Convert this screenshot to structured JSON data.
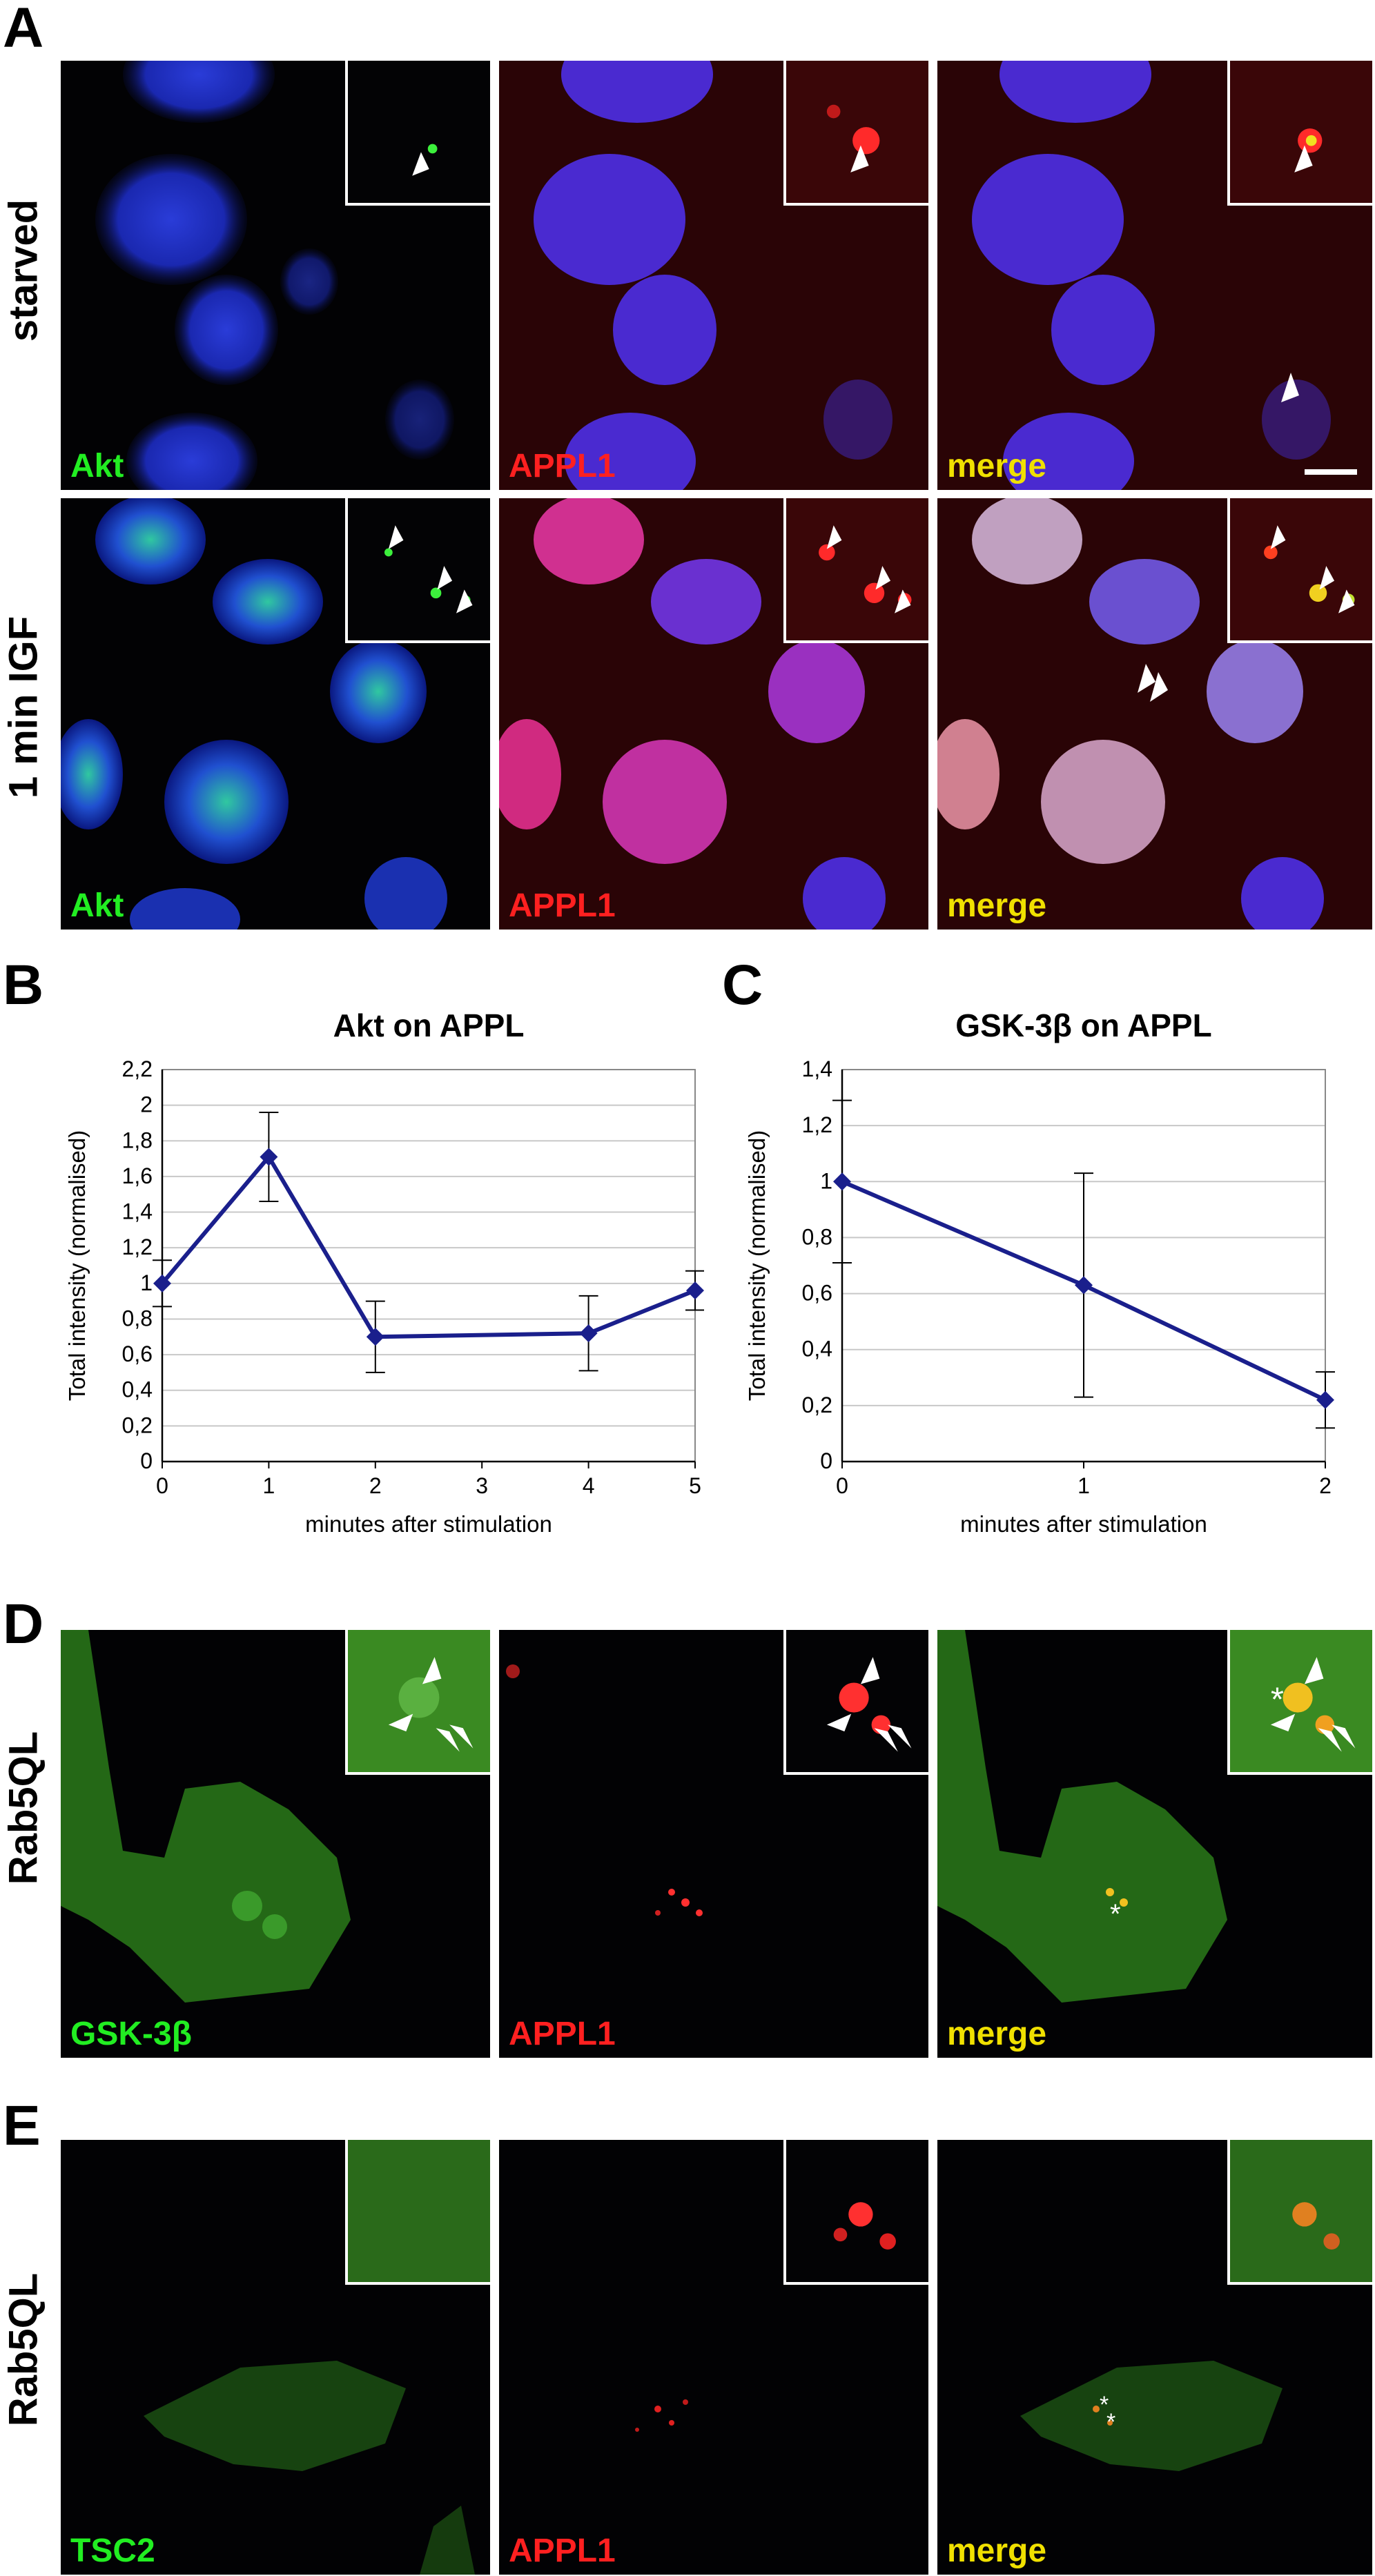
{
  "panel_labels": {
    "A": "A",
    "B": "B",
    "C": "C",
    "D": "D",
    "E": "E"
  },
  "row_labels": {
    "starved": "starved",
    "igf": "1 min IGF",
    "rab5ql_d": "Rab5QL",
    "rab5ql_e": "Rab5QL"
  },
  "stain_labels": {
    "akt": "Akt",
    "appl1": "APPL1",
    "merge": "merge",
    "gsk": "GSK-3β",
    "tsc2": "TSC2"
  },
  "colors": {
    "green_label": "#22ee22",
    "red_label": "#ff2020",
    "merge_label": "#f0e000",
    "series_line": "#1a1f8c",
    "grid": "#c8c8c8"
  },
  "icons": [
    "arrowhead-icon",
    "asterisk-icon",
    "scale-bar"
  ],
  "chart_data": [
    {
      "type": "line",
      "title": "Akt on APPL",
      "xlabel": "minutes after stimulation",
      "ylabel": "Total intensity (normalised)",
      "x": [
        0,
        1,
        2,
        4,
        5
      ],
      "xticks": [
        0,
        1,
        2,
        3,
        4,
        5
      ],
      "xtick_labels": [
        "0",
        "1",
        "2",
        "3",
        "4",
        "5"
      ],
      "yticks": [
        0,
        0.2,
        0.4,
        0.6,
        0.8,
        1,
        1.2,
        1.4,
        1.6,
        1.8,
        2,
        2.2
      ],
      "ytick_labels": [
        "0",
        "0,2",
        "0,4",
        "0,6",
        "0,8",
        "1",
        "1,2",
        "1,4",
        "1,6",
        "1,8",
        "2",
        "2,2"
      ],
      "ylim": [
        0,
        2.2
      ],
      "xlim": [
        0,
        5
      ],
      "grid": true,
      "series": [
        {
          "values": [
            1.0,
            1.71,
            0.7,
            0.72,
            0.96
          ],
          "errors": [
            0.13,
            0.25,
            0.2,
            0.21,
            0.11
          ]
        }
      ]
    },
    {
      "type": "line",
      "title": "GSK-3β on APPL",
      "xlabel": "minutes after stimulation",
      "ylabel": "Total intensity (normalised)",
      "x": [
        0,
        1,
        2
      ],
      "xticks": [
        0,
        1,
        2
      ],
      "xtick_labels": [
        "0",
        "1",
        "2"
      ],
      "yticks": [
        0,
        0.2,
        0.4,
        0.6,
        0.8,
        1,
        1.2,
        1.4
      ],
      "ytick_labels": [
        "0",
        "0,2",
        "0,4",
        "0,6",
        "0,8",
        "1",
        "1,2",
        "1,4"
      ],
      "ylim": [
        0,
        1.4
      ],
      "xlim": [
        0,
        2
      ],
      "grid": true,
      "series": [
        {
          "values": [
            1.0,
            0.63,
            0.22
          ],
          "errors": [
            0.29,
            0.4,
            0.1
          ]
        }
      ]
    }
  ]
}
